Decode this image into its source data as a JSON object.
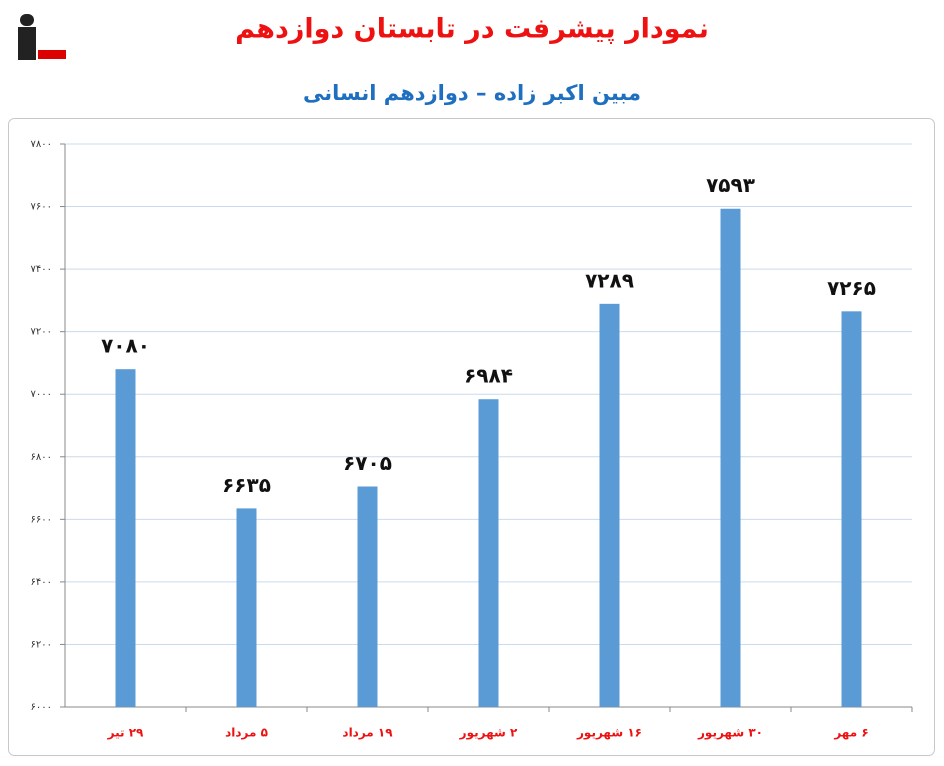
{
  "chart_data": {
    "type": "bar",
    "title": "نمودار پیشرفت در تابستان دوازدهم",
    "subtitle": "مبین اکبر زاده – دوازدهم انسانی",
    "categories": [
      "۲۹ تیر",
      "۵ مرداد",
      "۱۹ مرداد",
      "۲ شهریور",
      "۱۶ شهریور",
      "۳۰ شهریور",
      "۶ مهر"
    ],
    "values": [
      7080,
      6635,
      6705,
      6984,
      7289,
      7593,
      7265
    ],
    "value_labels": [
      "۷۰۸۰",
      "۶۶۳۵",
      "۶۷۰۵",
      "۶۹۸۴",
      "۷۲۸۹",
      "۷۵۹۳",
      "۷۲۶۵"
    ],
    "color": "#5b9bd5",
    "ylim": [
      6000,
      7800
    ],
    "yticks": [
      {
        "value": 6000,
        "label": "۶۰۰۰"
      },
      {
        "value": 6200,
        "label": "۶۲۰۰"
      },
      {
        "value": 6400,
        "label": "۶۴۰۰"
      },
      {
        "value": 6600,
        "label": "۶۶۰۰"
      },
      {
        "value": 6800,
        "label": "۶۸۰۰"
      },
      {
        "value": 7000,
        "label": "۷۰۰۰"
      },
      {
        "value": 7200,
        "label": "۷۲۰۰"
      },
      {
        "value": 7400,
        "label": "۷۴۰۰"
      },
      {
        "value": 7600,
        "label": "۷۶۰۰"
      },
      {
        "value": 7800,
        "label": "۷۸۰۰"
      }
    ],
    "grid": true
  }
}
